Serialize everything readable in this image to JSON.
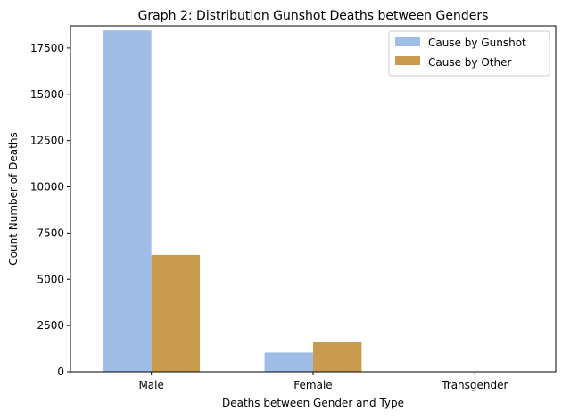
{
  "chart_data": {
    "type": "bar",
    "title": "Graph 2: Distribution Gunshot Deaths between Genders",
    "xlabel": "Deaths between Gender and Type",
    "ylabel": "Count Number of Deaths",
    "categories": [
      "Male",
      "Female",
      "Transgender"
    ],
    "series": [
      {
        "name": "Cause by Gunshot",
        "color": "#a0bde8",
        "values": [
          18450,
          1040,
          0
        ]
      },
      {
        "name": "Cause by Other",
        "color": "#c99b4f",
        "values": [
          6320,
          1590,
          0
        ]
      }
    ],
    "ylim": [
      0,
      18700
    ],
    "yticks": [
      0,
      2500,
      5000,
      7500,
      10000,
      12500,
      15000,
      17500
    ],
    "ytick_labels": [
      "0",
      "2500",
      "5000",
      "7500",
      "10000",
      "12500",
      "15000",
      "17500"
    ],
    "grid": false,
    "legend_position": "top-right"
  }
}
